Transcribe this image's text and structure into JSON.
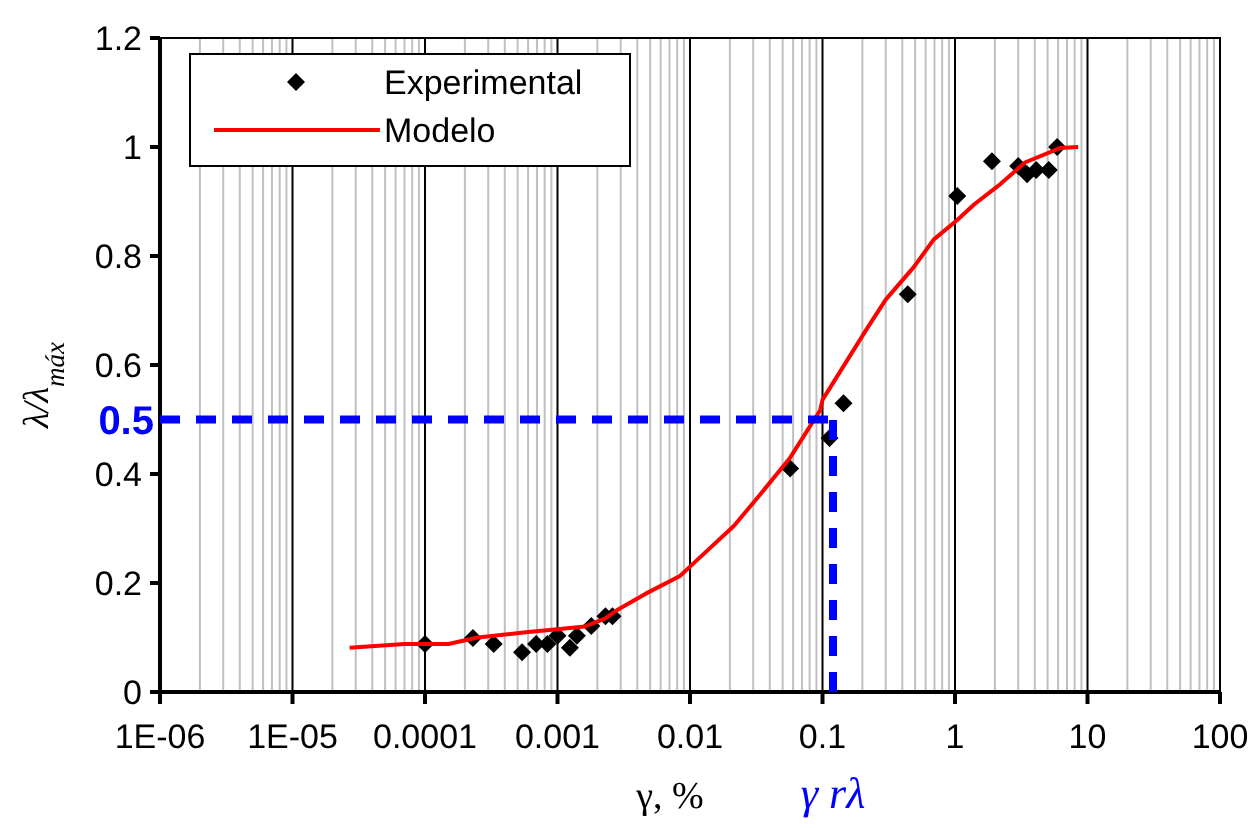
{
  "chart_data": {
    "type": "scatter",
    "xlabel": "γ, %",
    "ylabel": "λ/λ$_{máx}$",
    "log": "x",
    "grid": "x",
    "legend": "top left",
    "xlim": [
      1e-06,
      100
    ],
    "xticks": [
      {
        "value": 1e-06,
        "label": "1E-06"
      },
      {
        "value": 1e-05,
        "label": "1E-05"
      },
      0.0001,
      0.001,
      0.01,
      0.1,
      1,
      10,
      100
    ],
    "ylim": [
      0,
      1.2
    ],
    "yticks": [
      0,
      0.2,
      0.4,
      0.6,
      0.8,
      1,
      1.2
    ],
    "series": [
      {
        "name": "Experimental",
        "marker": "diamond",
        "color": "#000000",
        "x": [
          0.0001,
          0.00023,
          0.00033,
          0.00054,
          0.00069,
          0.00084,
          0.001,
          0.00124,
          0.0014,
          0.0018,
          0.0023,
          0.0026,
          0.057,
          0.113,
          0.144,
          0.44,
          1.04,
          1.9,
          3.0,
          3.5,
          4.1,
          5.1,
          5.9
        ],
        "values": [
          0.088,
          0.099,
          0.088,
          0.073,
          0.088,
          0.088,
          0.103,
          0.081,
          0.103,
          0.121,
          0.139,
          0.139,
          0.41,
          0.466,
          0.53,
          0.73,
          0.91,
          0.974,
          0.965,
          0.95,
          0.958,
          0.958,
          1.0
        ]
      },
      {
        "name": "Modelo",
        "type": "line",
        "marker": "none",
        "line_style": "solid",
        "color": "#ff0000",
        "x": [
          2.7e-05,
          7e-05,
          0.00015,
          0.00025,
          0.0006,
          0.001,
          0.0016,
          0.0023,
          0.0028,
          0.0046,
          0.0084,
          0.01,
          0.0215,
          0.034,
          0.057,
          0.096,
          0.1,
          0.213,
          0.3,
          0.49,
          0.69,
          1.04,
          1.4,
          2.2,
          3.4,
          6.2,
          8.5
        ],
        "values": [
          0.081,
          0.088,
          0.088,
          0.1,
          0.11,
          0.115,
          0.12,
          0.135,
          0.15,
          0.18,
          0.213,
          0.23,
          0.305,
          0.363,
          0.43,
          0.517,
          0.536,
          0.664,
          0.72,
          0.78,
          0.83,
          0.866,
          0.895,
          0.932,
          0.972,
          0.998,
          1.0
        ]
      }
    ],
    "ref_lines": [
      {
        "axis": "y",
        "value": 0.5,
        "label": "0.5",
        "color": "#0000ff",
        "line_style": "dashed"
      },
      {
        "axis": "x",
        "value": 0.12,
        "label": "γ rλ",
        "color": "#0000ff",
        "line_style": "dashed"
      }
    ]
  }
}
